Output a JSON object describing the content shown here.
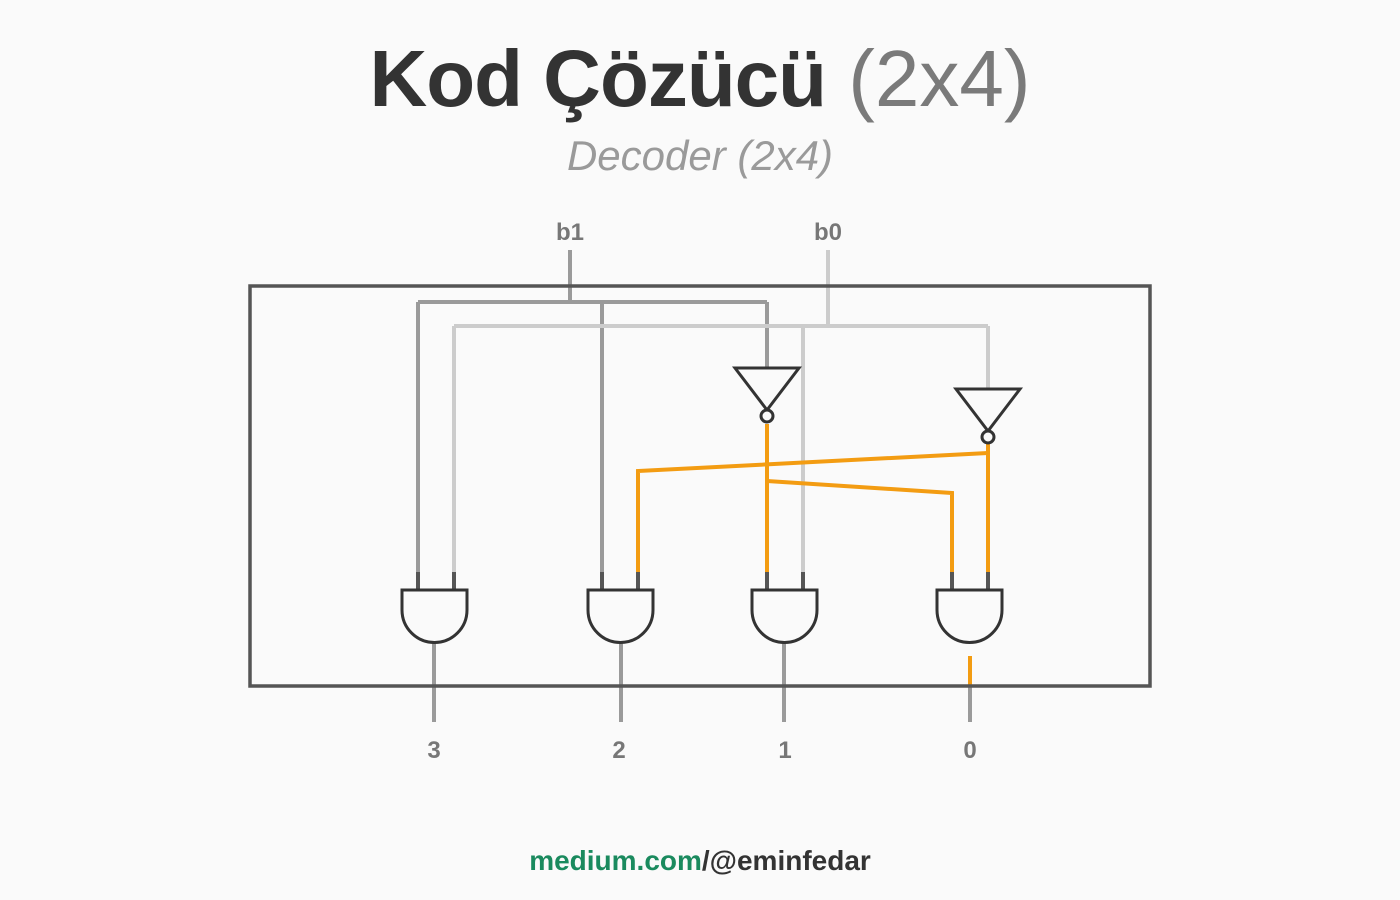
{
  "header": {
    "title_main": "Kod Çözücü",
    "title_suffix": "(2x4)",
    "subtitle": "Decoder (2x4)"
  },
  "inputs": {
    "b1": "b1",
    "b0": "b0"
  },
  "outputs": [
    "3",
    "2",
    "1",
    "0"
  ],
  "colors": {
    "b1_wire": "#9a9a9a",
    "b0_wire": "#cccccc",
    "inverted_wire": "#f39c12",
    "gate_stroke": "#333333",
    "box_stroke": "#555555",
    "site": "#1a8a5e"
  },
  "footer": {
    "site": "medium.com",
    "separator": "/",
    "handle": "@eminfedar"
  }
}
